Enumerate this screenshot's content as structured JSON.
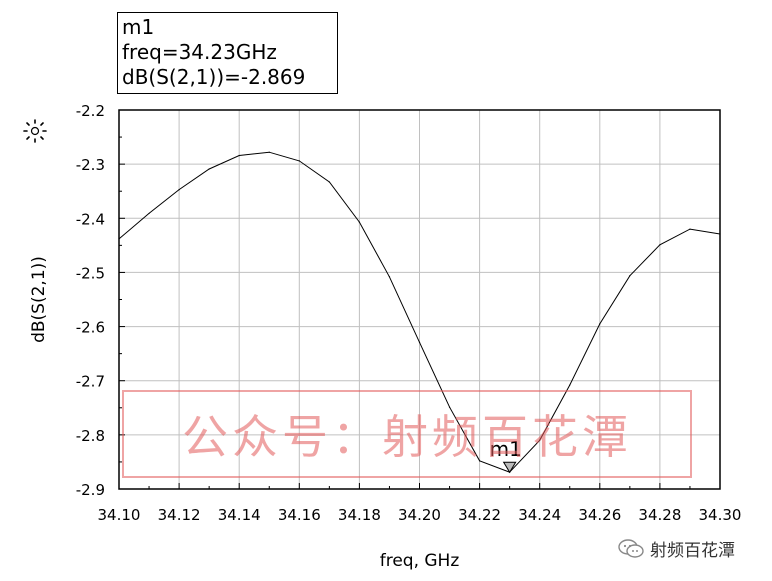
{
  "marker_box": {
    "name": "m1",
    "freq_line": "freq=34.23GHz",
    "value_line": "dB(S(2,1))=-2.869"
  },
  "watermark": "公众号：射频百花潭",
  "corner_logo": "射频百花潭",
  "colors": {
    "trace": "#000000",
    "grid": "#c0c0c0",
    "watermark": "#e15a5a"
  },
  "icons": [
    "sun-icon",
    "wechat-icon",
    "marker-triangle-icon"
  ],
  "chart_data": {
    "type": "line",
    "xlabel": "freq, GHz",
    "ylabel": "dB(S(2,1))",
    "xlim": [
      34.1,
      34.3
    ],
    "ylim": [
      -2.9,
      -2.2
    ],
    "xticks": [
      "34.10",
      "34.12",
      "34.14",
      "34.16",
      "34.18",
      "34.20",
      "34.22",
      "34.24",
      "34.26",
      "34.28",
      "34.30"
    ],
    "yticks": [
      "-2.2",
      "-2.3",
      "-2.4",
      "-2.5",
      "-2.6",
      "-2.7",
      "-2.8",
      "-2.9"
    ],
    "grid": true,
    "series": [
      {
        "x": [
          34.1,
          34.11,
          34.12,
          34.13,
          34.14,
          34.15,
          34.16,
          34.17,
          34.18,
          34.19,
          34.2,
          34.21,
          34.22,
          34.23,
          34.24,
          34.25,
          34.26,
          34.27,
          34.28,
          34.29,
          34.3
        ],
        "y": [
          -2.438,
          -2.391,
          -2.347,
          -2.309,
          -2.284,
          -2.278,
          -2.294,
          -2.333,
          -2.407,
          -2.508,
          -2.629,
          -2.749,
          -2.848,
          -2.869,
          -2.81,
          -2.708,
          -2.595,
          -2.506,
          -2.449,
          -2.42,
          -2.429
        ]
      }
    ],
    "marker": {
      "label": "m1",
      "x": 34.23,
      "y": -2.869
    }
  }
}
